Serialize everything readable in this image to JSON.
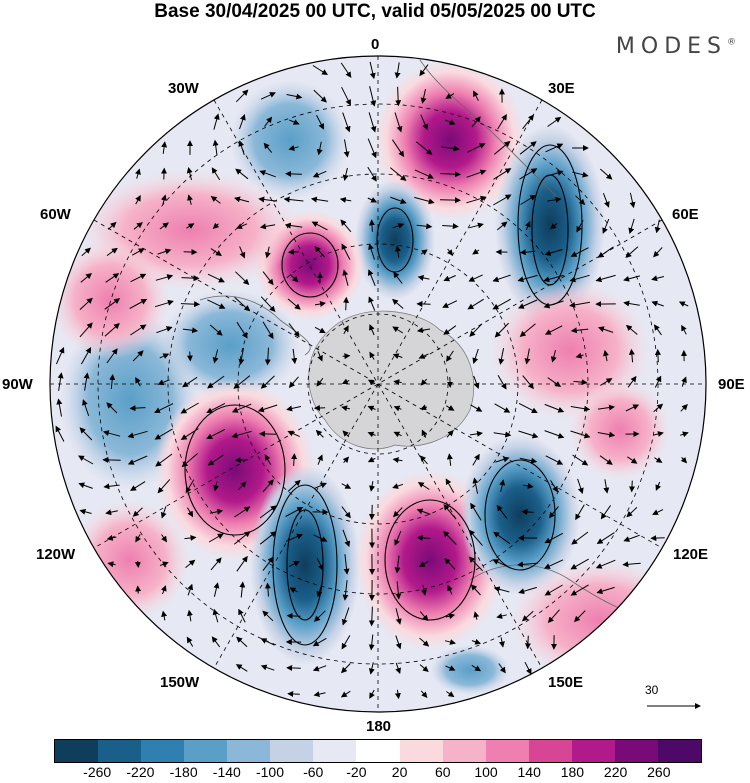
{
  "header": {
    "title": "Base 30/04/2025 00 UTC, valid 05/05/2025 00 UTC",
    "brand": "MODES",
    "brand_mark": "®"
  },
  "map": {
    "projection": "south polar stereographic",
    "longitude_labels": {
      "top": "0",
      "top_right": "30E",
      "right_upper": "60E",
      "right": "90E",
      "right_lower": "120E",
      "bottom_right": "150E",
      "bottom": "180",
      "bottom_left": "150W",
      "left_lower": "120W",
      "left": "90W",
      "left_upper": "60W",
      "top_left": "30W"
    },
    "reference_vector": "30"
  },
  "colorbar": {
    "ticks": [
      "-260",
      "-220",
      "-180",
      "-140",
      "-100",
      "-60",
      "-20",
      "20",
      "60",
      "100",
      "140",
      "180",
      "220",
      "260"
    ],
    "colors": [
      "#0f3d5c",
      "#1a5f8a",
      "#2f7fb0",
      "#5a9fc8",
      "#8bb8d8",
      "#c5d2e6",
      "#e6e8f3",
      "#ffffff",
      "#fadadf",
      "#f6b2c8",
      "#ee7fb0",
      "#d94595",
      "#b2198a",
      "#7a0a78",
      "#4d0868"
    ]
  },
  "colors": {
    "positive": "#d94595",
    "negative": "#2f7fb0",
    "land": "#cfcfcf"
  }
}
